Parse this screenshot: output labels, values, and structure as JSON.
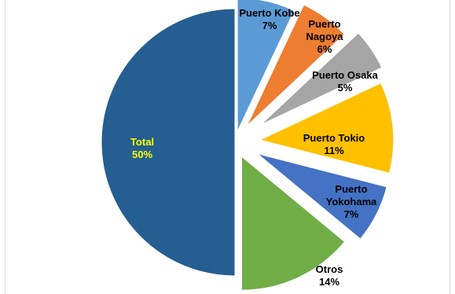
{
  "chart_data": {
    "type": "pie",
    "exploded": true,
    "labels_show": [
      "category",
      "percent"
    ],
    "slices": [
      {
        "name": "Puerto Kobe",
        "name_lines": [
          "Puerto Kobe"
        ],
        "value": 7,
        "label": "7%",
        "color": "#5b9bd5"
      },
      {
        "name": "Puerto Nagoya",
        "name_lines": [
          "Puerto",
          "Nagoya"
        ],
        "value": 6,
        "label": "6%",
        "color": "#ed7d31"
      },
      {
        "name": "Puerto Osaka",
        "name_lines": [
          "Puerto Osaka"
        ],
        "value": 5,
        "label": "5%",
        "color": "#a5a5a5"
      },
      {
        "name": "Puerto Tokio",
        "name_lines": [
          "Puerto Tokio"
        ],
        "value": 11,
        "label": "11%",
        "color": "#ffc000"
      },
      {
        "name": "Puerto Yokohama",
        "name_lines": [
          "Puerto",
          "Yokohama"
        ],
        "value": 7,
        "label": "7%",
        "color": "#4472c4"
      },
      {
        "name": "Otros",
        "name_lines": [
          "Otros"
        ],
        "value": 14,
        "label": "14%",
        "color": "#70ad47"
      },
      {
        "name": "Total",
        "name_lines": [
          "Total"
        ],
        "value": 50,
        "label": "50%",
        "color": "#255e91",
        "label_color": "#ffff00"
      }
    ]
  }
}
